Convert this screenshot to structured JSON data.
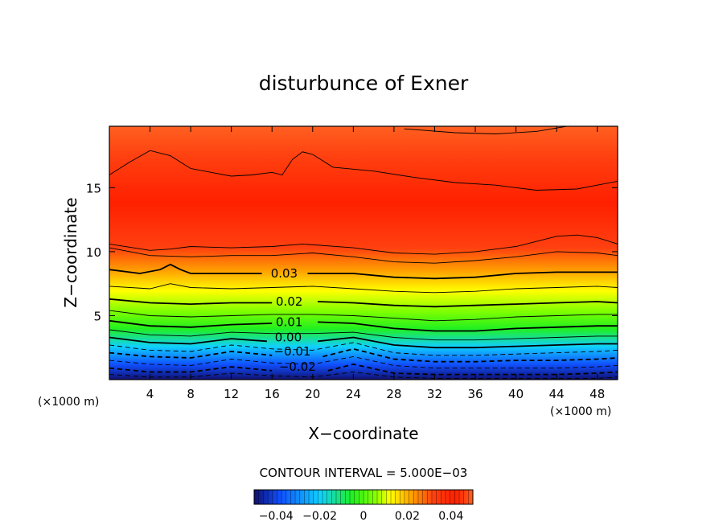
{
  "chart_data": {
    "type": "heatmap",
    "title": "disturbunce of Exner",
    "xlabel": "X−coordinate",
    "ylabel": "Z−coordinate",
    "x_unit_left": "(×1000 m)",
    "x_unit_right": "(×1000 m)",
    "xlim": [
      0,
      50
    ],
    "ylim": [
      0,
      19.8
    ],
    "xticks": [
      4,
      8,
      12,
      16,
      20,
      24,
      28,
      32,
      36,
      40,
      44,
      48
    ],
    "yticks": [
      5,
      10,
      15
    ],
    "contour_interval_text": "CONTOUR INTERVAL = 5.000E−03",
    "colorbar": {
      "min": -0.05,
      "max": 0.05,
      "tick_values": [
        -0.04,
        -0.02,
        0,
        0.02,
        0.04
      ],
      "tick_labels": [
        "−0.04",
        "−0.02",
        "0",
        "0.02",
        "0.04"
      ]
    },
    "colormap_stops": [
      "#101070",
      "#1050ff",
      "#10d0ff",
      "#20f020",
      "#80ff00",
      "#ffff00",
      "#ffa000",
      "#ff4010",
      "#ff2000",
      "#ff4010",
      "#ff6020"
    ],
    "contour_labels": [
      {
        "text": "0.03",
        "x": 17.2,
        "y": 8.3
      },
      {
        "text": "0.02",
        "x": 17.7,
        "y": 6.1
      },
      {
        "text": "0.01",
        "x": 17.7,
        "y": 4.5
      },
      {
        "text": "0.00",
        "x": 17.6,
        "y": 3.3
      },
      {
        "text": "−0.01",
        "x": 18.0,
        "y": 2.2
      },
      {
        "text": "−0.02",
        "x": 18.5,
        "y": 1.0
      }
    ],
    "contours": [
      {
        "value": 0.0375,
        "points": [
          [
            0,
            16
          ],
          [
            2,
            17
          ],
          [
            4,
            17.9
          ],
          [
            6,
            17.5
          ],
          [
            8,
            16.5
          ],
          [
            10,
            16.2
          ],
          [
            12,
            15.9
          ],
          [
            14,
            16
          ],
          [
            16,
            16.2
          ],
          [
            17,
            16
          ],
          [
            18,
            17.2
          ],
          [
            19,
            17.8
          ],
          [
            20,
            17.6
          ],
          [
            22,
            16.6
          ],
          [
            26,
            16.3
          ],
          [
            30,
            15.8
          ],
          [
            34,
            15.4
          ],
          [
            38,
            15.2
          ],
          [
            42,
            14.8
          ],
          [
            46,
            14.9
          ],
          [
            50,
            15.5
          ]
        ]
      },
      {
        "value": 0.0375,
        "points": [
          [
            0,
            10.6
          ],
          [
            4,
            10.1
          ],
          [
            6,
            10.2
          ],
          [
            8,
            10.4
          ],
          [
            12,
            10.3
          ],
          [
            16,
            10.4
          ],
          [
            19,
            10.6
          ],
          [
            24,
            10.3
          ],
          [
            28,
            9.9
          ],
          [
            32,
            9.8
          ],
          [
            36,
            10
          ],
          [
            40,
            10.4
          ],
          [
            44,
            11.2
          ],
          [
            46,
            11.3
          ],
          [
            48,
            11.1
          ],
          [
            50,
            10.6
          ]
        ]
      },
      {
        "value": 0.035,
        "points": [
          [
            0,
            10.3
          ],
          [
            4,
            9.7
          ],
          [
            8,
            9.6
          ],
          [
            12,
            9.7
          ],
          [
            16,
            9.7
          ],
          [
            20,
            9.9
          ],
          [
            24,
            9.6
          ],
          [
            28,
            9.2
          ],
          [
            32,
            9.1
          ],
          [
            36,
            9.3
          ],
          [
            40,
            9.6
          ],
          [
            44,
            10
          ],
          [
            48,
            9.9
          ],
          [
            50,
            9.7
          ]
        ]
      },
      {
        "value": 0.03,
        "points": [
          [
            0,
            8.6
          ],
          [
            3,
            8.3
          ],
          [
            5,
            8.6
          ],
          [
            6,
            9
          ],
          [
            7,
            8.6
          ],
          [
            8,
            8.3
          ],
          [
            12,
            8.3
          ],
          [
            15,
            8.3
          ]
        ]
      },
      {
        "value": 0.03,
        "points": [
          [
            19.5,
            8.3
          ],
          [
            24,
            8.3
          ],
          [
            28,
            8
          ],
          [
            32,
            7.9
          ],
          [
            36,
            8
          ],
          [
            40,
            8.3
          ],
          [
            44,
            8.4
          ],
          [
            48,
            8.4
          ],
          [
            50,
            8.4
          ]
        ]
      },
      {
        "value": 0.025,
        "points": [
          [
            0,
            7.3
          ],
          [
            4,
            7.1
          ],
          [
            6,
            7.5
          ],
          [
            8,
            7.2
          ],
          [
            12,
            7.1
          ],
          [
            16,
            7.2
          ],
          [
            20,
            7.3
          ],
          [
            24,
            7.1
          ],
          [
            28,
            6.9
          ],
          [
            32,
            6.8
          ],
          [
            36,
            6.9
          ],
          [
            40,
            7.1
          ],
          [
            44,
            7.2
          ],
          [
            48,
            7.3
          ],
          [
            50,
            7.2
          ]
        ]
      },
      {
        "value": 0.02,
        "points": [
          [
            0,
            6.3
          ],
          [
            4,
            6
          ],
          [
            8,
            5.9
          ],
          [
            12,
            6
          ],
          [
            16,
            6
          ]
        ]
      },
      {
        "value": 0.02,
        "points": [
          [
            20.5,
            6.1
          ],
          [
            24,
            6
          ],
          [
            28,
            5.8
          ],
          [
            32,
            5.7
          ],
          [
            36,
            5.8
          ],
          [
            40,
            5.9
          ],
          [
            44,
            6
          ],
          [
            48,
            6.1
          ],
          [
            50,
            6
          ]
        ]
      },
      {
        "value": 0.015,
        "points": [
          [
            0,
            5.4
          ],
          [
            4,
            5
          ],
          [
            8,
            4.9
          ],
          [
            12,
            5
          ],
          [
            16,
            5.1
          ],
          [
            20,
            5.1
          ],
          [
            24,
            5
          ],
          [
            28,
            4.8
          ],
          [
            32,
            4.6
          ],
          [
            36,
            4.7
          ],
          [
            40,
            4.9
          ],
          [
            44,
            5
          ],
          [
            48,
            5.1
          ],
          [
            50,
            5.1
          ]
        ]
      },
      {
        "value": 0.01,
        "points": [
          [
            0,
            4.6
          ],
          [
            4,
            4.2
          ],
          [
            8,
            4.1
          ],
          [
            12,
            4.3
          ],
          [
            16,
            4.4
          ]
        ]
      },
      {
        "value": 0.01,
        "points": [
          [
            20.5,
            4.5
          ],
          [
            24,
            4.4
          ],
          [
            28,
            4
          ],
          [
            32,
            3.8
          ],
          [
            36,
            3.8
          ],
          [
            40,
            4
          ],
          [
            44,
            4.1
          ],
          [
            48,
            4.2
          ],
          [
            50,
            4.2
          ]
        ]
      },
      {
        "value": 0.005,
        "points": [
          [
            0,
            3.9
          ],
          [
            4,
            3.5
          ],
          [
            8,
            3.4
          ],
          [
            12,
            3.7
          ],
          [
            16,
            3.6
          ],
          [
            20,
            3.6
          ],
          [
            24,
            3.7
          ],
          [
            28,
            3.3
          ],
          [
            32,
            3.1
          ],
          [
            36,
            3.1
          ],
          [
            40,
            3.2
          ],
          [
            44,
            3.3
          ],
          [
            48,
            3.4
          ],
          [
            50,
            3.4
          ]
        ]
      },
      {
        "value": 0.0,
        "points": [
          [
            0,
            3.3
          ],
          [
            4,
            2.9
          ],
          [
            8,
            2.8
          ],
          [
            12,
            3.2
          ],
          [
            15.5,
            3
          ]
        ]
      },
      {
        "value": 0.0,
        "points": [
          [
            20.5,
            3
          ],
          [
            24,
            3.3
          ],
          [
            28,
            2.7
          ],
          [
            32,
            2.5
          ],
          [
            36,
            2.5
          ],
          [
            40,
            2.6
          ],
          [
            44,
            2.7
          ],
          [
            48,
            2.8
          ],
          [
            50,
            2.8
          ]
        ]
      },
      {
        "value": -0.005,
        "points": [
          [
            0,
            2.7
          ],
          [
            4,
            2.3
          ],
          [
            8,
            2.2
          ],
          [
            12,
            2.7
          ],
          [
            16,
            2.4
          ],
          [
            20,
            2.3
          ],
          [
            24,
            2.9
          ],
          [
            28,
            2.1
          ],
          [
            32,
            1.9
          ],
          [
            36,
            1.9
          ],
          [
            40,
            2
          ],
          [
            44,
            2.1
          ],
          [
            48,
            2.2
          ],
          [
            50,
            2.3
          ]
        ]
      },
      {
        "value": -0.01,
        "points": [
          [
            0,
            2.1
          ],
          [
            4,
            1.8
          ],
          [
            8,
            1.7
          ],
          [
            12,
            2.2
          ],
          [
            16,
            1.9
          ]
        ]
      },
      {
        "value": -0.01,
        "points": [
          [
            21,
            1.8
          ],
          [
            24,
            2.4
          ],
          [
            28,
            1.6
          ],
          [
            32,
            1.4
          ],
          [
            36,
            1.4
          ],
          [
            40,
            1.5
          ],
          [
            44,
            1.5
          ],
          [
            48,
            1.6
          ],
          [
            50,
            1.7
          ]
        ]
      },
      {
        "value": -0.015,
        "points": [
          [
            0,
            1.5
          ],
          [
            4,
            1.2
          ],
          [
            8,
            1.1
          ],
          [
            12,
            1.6
          ],
          [
            16,
            1.3
          ],
          [
            20,
            1.2
          ],
          [
            24,
            1.8
          ],
          [
            28,
            1.1
          ],
          [
            32,
            0.9
          ],
          [
            36,
            0.9
          ],
          [
            40,
            0.9
          ],
          [
            44,
            0.9
          ],
          [
            48,
            1
          ],
          [
            50,
            1.1
          ]
        ]
      },
      {
        "value": -0.02,
        "points": [
          [
            0,
            0.9
          ],
          [
            4,
            0.6
          ],
          [
            8,
            0.6
          ],
          [
            12,
            1
          ],
          [
            16,
            0.7
          ]
        ]
      },
      {
        "value": -0.02,
        "points": [
          [
            21.5,
            0.7
          ],
          [
            24,
            1.2
          ],
          [
            28,
            0.5
          ],
          [
            32,
            0.4
          ],
          [
            36,
            0.4
          ],
          [
            40,
            0.4
          ],
          [
            44,
            0.4
          ],
          [
            48,
            0.5
          ],
          [
            50,
            0.6
          ]
        ]
      },
      {
        "value": -0.025,
        "points": [
          [
            0,
            0.4
          ],
          [
            4,
            0.2
          ],
          [
            8,
            0.2
          ],
          [
            12,
            0.5
          ],
          [
            16,
            0.3
          ],
          [
            20,
            0.2
          ],
          [
            24,
            0.6
          ],
          [
            28,
            0.2
          ],
          [
            32,
            0.1
          ],
          [
            36,
            0.1
          ],
          [
            40,
            0.1
          ],
          [
            44,
            0.1
          ],
          [
            48,
            0.1
          ],
          [
            50,
            0.2
          ]
        ]
      },
      {
        "value": 0.045,
        "points": [
          [
            29,
            19.6
          ],
          [
            34,
            19.3
          ],
          [
            38,
            19.2
          ],
          [
            42,
            19.4
          ],
          [
            45,
            19.8
          ]
        ]
      }
    ]
  }
}
